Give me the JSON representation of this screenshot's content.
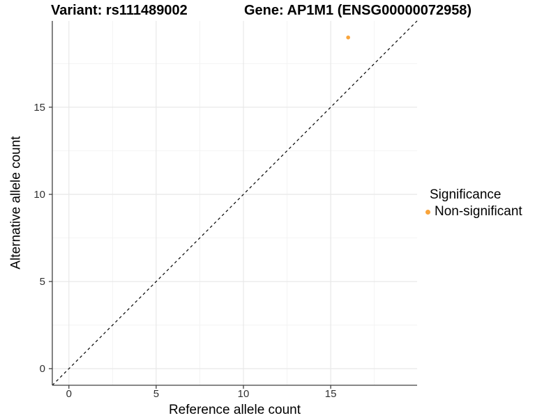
{
  "chart_data": {
    "type": "scatter",
    "title_left": "Variant: rs111489002",
    "title_right": "Gene: AP1M1 (ENSG00000072958)",
    "xlabel": "Reference allele count",
    "ylabel": "Alternative allele count",
    "xlim": [
      -0.95,
      19.95
    ],
    "ylim": [
      -0.95,
      19.95
    ],
    "x_ticks": {
      "values": [
        0,
        5,
        10,
        15
      ],
      "labels": [
        "0",
        "5",
        "10",
        "15"
      ]
    },
    "y_ticks": {
      "values": [
        0,
        5,
        10,
        15
      ],
      "labels": [
        "0",
        "5",
        "10",
        "15"
      ]
    },
    "x_minor_ticks": [
      2.5,
      7.5,
      12.5,
      17.5
    ],
    "y_minor_ticks": [
      2.5,
      7.5,
      12.5,
      17.5
    ],
    "grid": true,
    "reference_line": {
      "type": "identity",
      "slope": 1,
      "intercept": 0,
      "style": "dashed",
      "color": "#000000"
    },
    "series": [
      {
        "name": "Non-significant",
        "color": "#F9A43B",
        "points": [
          {
            "x": 16,
            "y": 19
          }
        ]
      }
    ],
    "legend": {
      "title": "Significance",
      "position": "right",
      "entries": [
        {
          "label": "Non-significant",
          "color": "#F9A43B"
        }
      ]
    },
    "colors": {
      "background": "#FFFFFF",
      "grid_major": "#E8E8E8",
      "grid_minor": "#F2F2F2",
      "axis": "#404040",
      "tick_label": "#303030"
    }
  }
}
